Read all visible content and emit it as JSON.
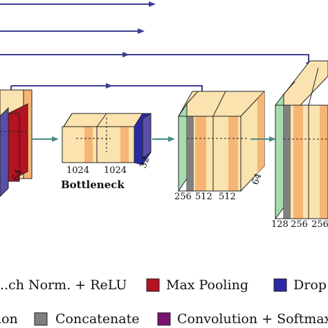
{
  "colors": {
    "arrow": "#3d3d8f",
    "flow": "#4a8a86",
    "conv_light": "#fbe3b0",
    "bn_relu": "#f5b574",
    "max_pool": "#b31322",
    "dropout": "#2a2aa8",
    "concat_green": "#a8dcb0",
    "concat_gray": "#808080",
    "softmax": "#7a1170",
    "purple_side": "#5a4fa8"
  },
  "diagram": {
    "left_block": {
      "channel_label": "64"
    },
    "bottleneck": {
      "title": "Bottleneck",
      "channel_labels": [
        "1024",
        "1024",
        "32"
      ]
    },
    "up_block_1": {
      "channel_labels": [
        "256",
        "512",
        "512"
      ],
      "side_label": "64"
    },
    "up_block_2": {
      "channel_labels": [
        "128",
        "256",
        "256"
      ]
    }
  },
  "legend": {
    "items": [
      {
        "label": "...ch Norm. + ReLU",
        "swatch": "bn_relu"
      },
      {
        "label": "Max Pooling",
        "swatch": "max_pool"
      },
      {
        "label": "Drop",
        "swatch": "dropout"
      },
      {
        "label": "ion",
        "swatch": "conv_light"
      },
      {
        "label": "Concatenate",
        "swatch": "concat_gray"
      },
      {
        "label": "Convolution + Softmax",
        "swatch": "softmax"
      }
    ]
  }
}
